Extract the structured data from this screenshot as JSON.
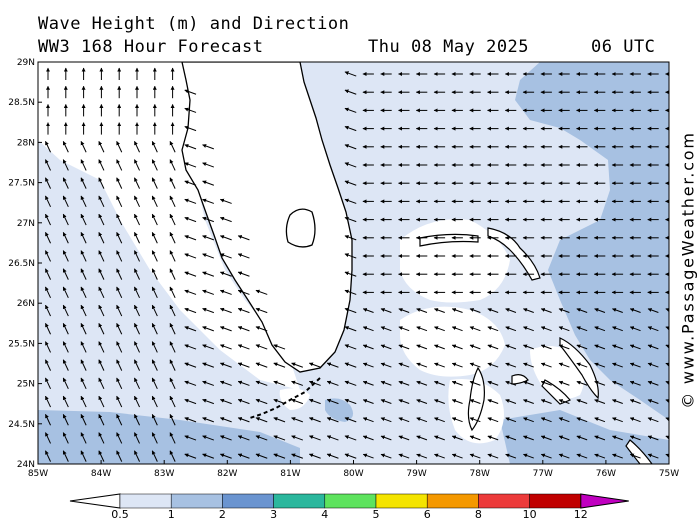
{
  "header": {
    "title_line1": "Wave Height (m) and Direction",
    "title_line2": "WW3 168 Hour Forecast",
    "date": "Thu 08 May 2025",
    "time": "06 UTC"
  },
  "watermark": "© www.PassageWeather.com",
  "map": {
    "lon_range": [
      -85,
      -75
    ],
    "lat_range": [
      24,
      29
    ],
    "lat_labels": [
      "29N",
      "28.5N",
      "28N",
      "27.5N",
      "27N",
      "26.5N",
      "26N",
      "25.5N",
      "25N",
      "24.5N",
      "24N"
    ],
    "lon_labels": [
      "85W",
      "84W",
      "83W",
      "82W",
      "81W",
      "80W",
      "79W",
      "78W",
      "77W",
      "76W",
      "75W"
    ],
    "land_color": "#ffffff",
    "coast_color": "#000000"
  },
  "colorbar": {
    "ticks": [
      "0.5",
      "1",
      "2",
      "3",
      "4",
      "5",
      "6",
      "8",
      "10",
      "12"
    ],
    "colors": [
      "#ffffff",
      "#dde6f5",
      "#a7c1e2",
      "#6a94d0",
      "#2bb79d",
      "#5ee35e",
      "#f4e400",
      "#f49800",
      "#ec3a3a",
      "#c00000",
      "#c000c0"
    ]
  },
  "wave_field": {
    "lowest_band": "0.5-1",
    "middle_band": "1-2",
    "low_color": "#dde6f5",
    "mid_color": "#a7c1e2"
  }
}
